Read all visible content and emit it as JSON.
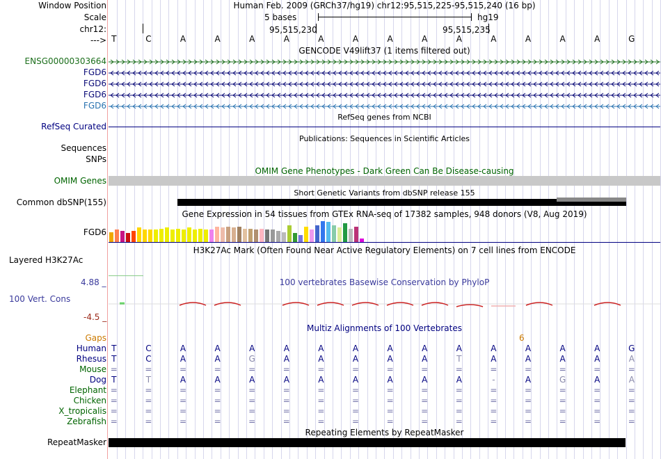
{
  "header": {
    "window_position_label": "Window Position",
    "scale_label": "Scale",
    "chrom_label": "chr12:",
    "strand_label": "--->",
    "title": "Human Feb. 2009 (GRCh37/hg19)   chr12:95,515,225-95,515,240 (16 bp)",
    "scale_text": "5 bases",
    "assembly": "hg19",
    "coord_left": "95,515,230",
    "coord_right": "95,515,235"
  },
  "sequence": [
    "T",
    "C",
    "A",
    "A",
    "A",
    "A",
    "A",
    "A",
    "A",
    "A",
    "A",
    "A",
    "A",
    "A",
    "A",
    "G"
  ],
  "gencode": {
    "title": "GENCODE V49lift37 (1 items filtered out)",
    "tracks": [
      {
        "label": "ENSG00000303664",
        "color": "#1b6e1b",
        "dir": "right"
      },
      {
        "label": "FGD6",
        "color": "#0c0c78",
        "dir": "left"
      },
      {
        "label": "FGD6",
        "color": "#0c0c78",
        "dir": "left"
      },
      {
        "label": "FGD6",
        "color": "#0c0c78",
        "dir": "left"
      },
      {
        "label": "FGD6",
        "color": "#2a73b0",
        "dir": "left"
      }
    ]
  },
  "refseq": {
    "title": "RefSeq genes from NCBI",
    "label": "RefSeq Curated"
  },
  "publications": {
    "title": "Publications: Sequences in Scientific Articles",
    "label": "Sequences"
  },
  "snps_label": "SNPs",
  "omim": {
    "title": "OMIM Gene Phenotypes - Dark Green Can Be Disease-causing",
    "label": "OMIM Genes"
  },
  "dbsnp": {
    "title": "Short Genetic Variants from dbSNP release 155",
    "label": "Common dbSNP(155)"
  },
  "gtex": {
    "title": "Gene Expression in 54 tissues from GTEx RNA-seq of 17382 samples, 948 donors (V8, Aug 2019)",
    "label": "FGD6",
    "bars": [
      {
        "color": "#f0a800",
        "value": 0.45
      },
      {
        "color": "#ff7f50",
        "value": 0.55
      },
      {
        "color": "#c71585",
        "value": 0.5
      },
      {
        "color": "#cc1111",
        "value": 0.4
      },
      {
        "color": "#ff4500",
        "value": 0.5
      },
      {
        "color": "#ffd700",
        "value": 0.65
      },
      {
        "color": "#ffd700",
        "value": 0.55
      },
      {
        "color": "#ffd700",
        "value": 0.55
      },
      {
        "color": "#eeee00",
        "value": 0.55
      },
      {
        "color": "#eeee00",
        "value": 0.6
      },
      {
        "color": "#eeee00",
        "value": 0.65
      },
      {
        "color": "#eeee00",
        "value": 0.55
      },
      {
        "color": "#eeee00",
        "value": 0.6
      },
      {
        "color": "#eeee00",
        "value": 0.55
      },
      {
        "color": "#eeee00",
        "value": 0.65
      },
      {
        "color": "#eeee00",
        "value": 0.55
      },
      {
        "color": "#eeee00",
        "value": 0.6
      },
      {
        "color": "#eeee00",
        "value": 0.55
      },
      {
        "color": "#ee82ee",
        "value": 0.55
      },
      {
        "color": "#ffb6a0",
        "value": 0.7
      },
      {
        "color": "#eebbaa",
        "value": 0.65
      },
      {
        "color": "#c8a080",
        "value": 0.7
      },
      {
        "color": "#d8b090",
        "value": 0.65
      },
      {
        "color": "#a08060",
        "value": 0.7
      },
      {
        "color": "#e2c2a0",
        "value": 0.6
      },
      {
        "color": "#c0a070",
        "value": 0.6
      },
      {
        "color": "#b09070",
        "value": 0.55
      },
      {
        "color": "#ffb6c1",
        "value": 0.6
      },
      {
        "color": "#777777",
        "value": 0.55
      },
      {
        "color": "#999999",
        "value": 0.55
      },
      {
        "color": "#aaaaaa",
        "value": 0.5
      },
      {
        "color": "#bbbbbb",
        "value": 0.45
      },
      {
        "color": "#aacc33",
        "value": 0.75
      },
      {
        "color": "#339933",
        "value": 0.4
      },
      {
        "color": "#7777dd",
        "value": 0.3
      },
      {
        "color": "#ffdd00",
        "value": 0.7
      },
      {
        "color": "#ee99ee",
        "value": 0.55
      },
      {
        "color": "#4466cc",
        "value": 0.75
      },
      {
        "color": "#3377ee",
        "value": 0.95
      },
      {
        "color": "#55bbee",
        "value": 0.9
      },
      {
        "color": "#88ccaa",
        "value": 0.75
      },
      {
        "color": "#ddee99",
        "value": 0.65
      },
      {
        "color": "#229944",
        "value": 0.85
      },
      {
        "color": "#bbbbbb",
        "value": 0.6
      },
      {
        "color": "#bb3377",
        "value": 0.7
      },
      {
        "color": "#dd00dd",
        "value": 0.15
      }
    ]
  },
  "h3k27ac": {
    "title": "H3K27Ac Mark (Often Found Near Active Regulatory Elements) on 7 cell lines from ENCODE",
    "label": "Layered H3K27Ac"
  },
  "cons": {
    "title": "100 vertebrates Basewise Conservation by PhyloP",
    "label": "100 Vert. Cons",
    "max": "4.88 _",
    "min": "-4.5 _"
  },
  "multiz": {
    "title": "Multiz Alignments of 100 Vertebrates",
    "gaps_label": "Gaps",
    "gap_count": "6",
    "species": [
      {
        "name": "Human",
        "bases": [
          "T",
          "C",
          "A",
          "A",
          "A",
          "A",
          "A",
          "A",
          "A",
          "A",
          "A",
          "A",
          "A",
          "A",
          "A",
          "G"
        ]
      },
      {
        "name": "Rhesus",
        "bases": [
          "T",
          "C",
          "A",
          "A",
          "G",
          "A",
          "A",
          "A",
          "A",
          "A",
          "T",
          "A",
          "A",
          "A",
          "A",
          "A"
        ]
      },
      {
        "name": "Mouse",
        "bases": [
          "=",
          "=",
          "=",
          "=",
          "=",
          "=",
          "=",
          "=",
          "=",
          "=",
          "=",
          "=",
          "=",
          "=",
          "=",
          "="
        ]
      },
      {
        "name": "Dog",
        "bases": [
          "T",
          "T",
          "A",
          "A",
          "A",
          "A",
          "A",
          "A",
          "A",
          "A",
          "A",
          "-",
          "A",
          "G",
          "A",
          "A"
        ]
      },
      {
        "name": "Elephant",
        "bases": [
          "=",
          "=",
          "=",
          "=",
          "=",
          "=",
          "=",
          "=",
          "=",
          "=",
          "=",
          "=",
          "=",
          "=",
          "=",
          "="
        ]
      },
      {
        "name": "Chicken",
        "bases": [
          "=",
          "=",
          "=",
          "=",
          "=",
          "=",
          "=",
          "=",
          "=",
          "=",
          "=",
          "=",
          "=",
          "=",
          "=",
          "="
        ]
      },
      {
        "name": "X_tropicalis",
        "bases": [
          "=",
          "=",
          "=",
          "=",
          "=",
          "=",
          "=",
          "=",
          "=",
          "=",
          "=",
          "=",
          "=",
          "=",
          "=",
          "="
        ]
      },
      {
        "name": "Zebrafish",
        "bases": [
          "=",
          "=",
          "=",
          "=",
          "=",
          "=",
          "=",
          "=",
          "=",
          "=",
          "=",
          "=",
          "=",
          "=",
          "=",
          "="
        ]
      }
    ]
  },
  "repeatmasker": {
    "title": "Repeating Elements by RepeatMasker",
    "label": "RepeatMasker"
  },
  "colors": {
    "navy": "#000080",
    "gencode_green": "#1b6e1b",
    "omim_green": "#006400",
    "cons_blue": "#3a3a9c",
    "cons_red": "#9c2a1a",
    "gaps_orange": "#cc7a00",
    "grid": "#d6d6ec"
  }
}
